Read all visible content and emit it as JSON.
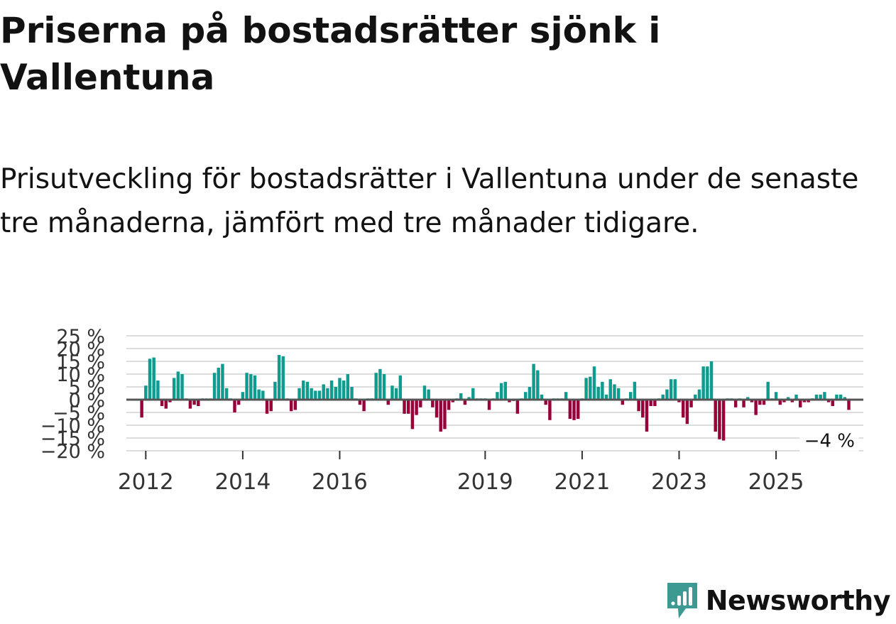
{
  "header": {
    "title": "Priserna på bostadsrätter sjönk i Vallentuna",
    "subtitle": "Prisutveckling för bostadsrätter i Vallentuna under de senaste tre månaderna, jämfört med tre månader tidigare."
  },
  "brand": {
    "name": "Newsworthy",
    "color": "#3c9a93",
    "icon": "newsworthy-logo-icon"
  },
  "colors": {
    "positive": "#0f9b8e",
    "negative": "#970038",
    "grid": "#dddddd",
    "zero_line": "#555555"
  },
  "chart_data": {
    "type": "bar",
    "title": "Priserna på bostadsrätter sjönk i Vallentuna",
    "xlabel": "",
    "ylabel": "",
    "ylim": [
      -20,
      25
    ],
    "x_range": [
      2011.6,
      2026.8
    ],
    "y_ticks": [
      {
        "value": 25,
        "label": "25 %"
      },
      {
        "value": 20,
        "label": "20 %"
      },
      {
        "value": 15,
        "label": "15 %"
      },
      {
        "value": 10,
        "label": "10 %"
      },
      {
        "value": 5,
        "label": "5 %"
      },
      {
        "value": 0,
        "label": "0 %"
      },
      {
        "value": -5,
        "label": "−5 %"
      },
      {
        "value": -10,
        "label": "−10 %"
      },
      {
        "value": -15,
        "label": "−15 %"
      },
      {
        "value": -20,
        "label": "−20 %"
      }
    ],
    "x_ticks": [
      {
        "value": 2012,
        "label": "2012"
      },
      {
        "value": 2014,
        "label": "2014"
      },
      {
        "value": 2016,
        "label": "2016"
      },
      {
        "value": 2019,
        "label": "2019"
      },
      {
        "value": 2021,
        "label": "2021"
      },
      {
        "value": 2023,
        "label": "2023"
      },
      {
        "value": 2025,
        "label": "2025"
      }
    ],
    "annotation": {
      "label": "−4 %",
      "value": -4
    },
    "series": [
      {
        "name": "Prisutveckling",
        "start": [
          2011,
          12
        ],
        "values": [
          -7,
          5.5,
          16,
          16.5,
          7.5,
          -2.5,
          -3.5,
          -1,
          8.5,
          11,
          10,
          0.5,
          -3.5,
          -2,
          -2.5,
          0.5,
          0.5,
          0.5,
          10.5,
          12.5,
          14,
          4.5,
          0.5,
          -5,
          -2,
          3,
          10.5,
          10,
          9.5,
          4,
          3.5,
          -5.5,
          -4.5,
          7,
          17.5,
          17,
          0.5,
          -4.5,
          -4,
          4.5,
          7.5,
          7,
          4.5,
          3.5,
          3.5,
          6,
          4.5,
          7.5,
          5,
          8.5,
          7.5,
          10,
          5,
          0.5,
          -2,
          -4.5,
          0.5,
          0.5,
          10.5,
          12,
          10,
          -2,
          5.5,
          4.5,
          9.5,
          -5.5,
          -5.5,
          -11.5,
          -6,
          -3,
          5.5,
          4,
          -3,
          -7,
          -12.5,
          -11.5,
          -4,
          -1,
          0.5,
          2.5,
          -2,
          1,
          4.5,
          0.5,
          0.5,
          0.5,
          -4,
          0.5,
          3,
          6.5,
          7,
          -1,
          -0.5,
          -5.5,
          0.5,
          3,
          5,
          14,
          11.5,
          2,
          -2,
          -8,
          0.5,
          0.5,
          0.5,
          3,
          -7.5,
          -8,
          -7.5,
          0.5,
          8.5,
          9,
          13,
          5,
          7,
          2,
          8,
          6,
          4.5,
          -2,
          0.5,
          3,
          7,
          -4.5,
          -7,
          -12.5,
          -2.5,
          -2.5,
          0.5,
          2,
          4,
          8,
          8,
          -1,
          -7,
          -9.5,
          -3,
          2,
          4,
          13,
          13,
          15,
          -12.5,
          -15.5,
          -16,
          0.5,
          0.5,
          -3,
          0.5,
          -3,
          1,
          -1,
          -6,
          -2,
          -2,
          7,
          0.5,
          3,
          -2,
          -1,
          1,
          -1,
          2,
          -3,
          -1,
          -1,
          0.5,
          2,
          2,
          3,
          -1,
          -2.5,
          2,
          2,
          1,
          -4
        ]
      }
    ]
  }
}
